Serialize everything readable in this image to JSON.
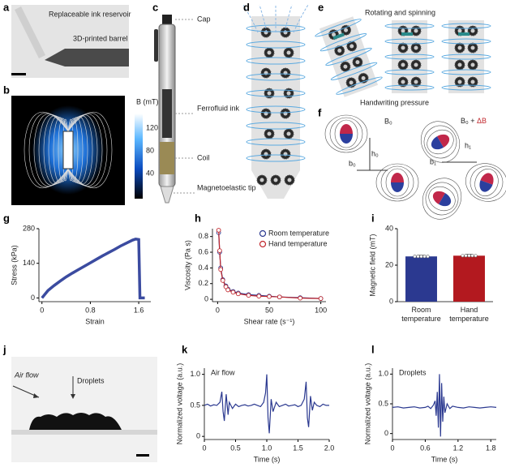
{
  "panel_letters": [
    "a",
    "b",
    "c",
    "d",
    "e",
    "f",
    "g",
    "h",
    "i",
    "j",
    "k",
    "l"
  ],
  "labels": {
    "reservoir": "Replaceable ink reservoir",
    "barrel": "3D-printed barrel",
    "colorbar_title": "B (mT)",
    "colorbar_ticks": [
      "120",
      "80",
      "40"
    ],
    "cap": "Cap",
    "ferrofluid": "Ferrofluid ink",
    "coil": "Coil",
    "tip": "Magnetoelastic tip",
    "rotating": "Rotating and spinning",
    "pressure": "Handwriting pressure",
    "b0_field": "B₀",
    "b0_plus": "B₀ + ",
    "delta_b": "ΔB",
    "b0": "b₀",
    "h0": "h₀",
    "b1": "b₁",
    "h1": "h₁",
    "air_flow": "Air flow",
    "droplets": "Droplets"
  },
  "chart_data": [
    {
      "type": "line",
      "xlabel": "Strain",
      "ylabel": "Stress (kPa)",
      "x": [
        0,
        0.1,
        0.2,
        0.3,
        0.4,
        0.5,
        0.6,
        0.7,
        0.8,
        0.9,
        1.0,
        1.1,
        1.2,
        1.3,
        1.4,
        1.5,
        1.55,
        1.6,
        1.62,
        1.7
      ],
      "series": [
        {
          "name": "Stress",
          "color": "#3b4ba0",
          "values": [
            0,
            30,
            50,
            68,
            85,
            100,
            114,
            128,
            142,
            156,
            170,
            183,
            196,
            210,
            222,
            234,
            238,
            236,
            0,
            0
          ]
        }
      ],
      "xlim": [
        -0.05,
        1.8
      ],
      "ylim": [
        -15,
        280
      ],
      "xticks": [
        0,
        0.8,
        1.6
      ],
      "yticks": [
        0,
        140,
        280
      ]
    },
    {
      "type": "line",
      "markers": true,
      "xlabel": "Shear rate (s⁻¹)",
      "ylabel": "Viscosity (Pa s)",
      "x": [
        1,
        2,
        3,
        5,
        8,
        10,
        15,
        20,
        30,
        40,
        50,
        60,
        80,
        100
      ],
      "series": [
        {
          "name": "Room temperature",
          "color": "#2b3990",
          "values": [
            0.85,
            0.6,
            0.4,
            0.25,
            0.17,
            0.13,
            0.1,
            0.08,
            0.06,
            0.05,
            0.04,
            0.03,
            0.02,
            0.01
          ]
        },
        {
          "name": "Hand temperature",
          "color": "#c1272d",
          "values": [
            0.88,
            0.62,
            0.38,
            0.24,
            0.16,
            0.12,
            0.09,
            0.07,
            0.05,
            0.04,
            0.035,
            0.03,
            0.015,
            0.01
          ]
        }
      ],
      "legend": "upper right",
      "xlim": [
        -5,
        105
      ],
      "ylim": [
        -0.03,
        0.9
      ],
      "xticks": [
        0,
        50,
        100
      ],
      "yticks": [
        0,
        0.2,
        0.4,
        0.6,
        0.8
      ]
    },
    {
      "type": "bar",
      "ylabel": "Magnetic field (mT)",
      "categories": [
        "Room temperature",
        "Hand temperature"
      ],
      "values": [
        24.8,
        25.2
      ],
      "errors": [
        0.6,
        0.7
      ],
      "colors": [
        "#2b3990",
        "#b3191f"
      ],
      "ylim": [
        0,
        40
      ],
      "yticks": [
        0,
        20,
        40
      ]
    },
    {
      "type": "line",
      "annotation": "Air flow",
      "xlabel": "Time (s)",
      "ylabel": "Normalized voltage (a.u.)",
      "x": [
        0,
        0.05,
        0.1,
        0.15,
        0.2,
        0.25,
        0.28,
        0.3,
        0.32,
        0.35,
        0.38,
        0.4,
        0.45,
        0.5,
        0.55,
        0.6,
        0.65,
        0.7,
        0.75,
        0.8,
        0.85,
        0.9,
        0.95,
        0.98,
        1.0,
        1.02,
        1.04,
        1.07,
        1.1,
        1.15,
        1.2,
        1.25,
        1.3,
        1.35,
        1.4,
        1.45,
        1.5,
        1.55,
        1.6,
        1.63,
        1.65,
        1.67,
        1.7,
        1.73,
        1.76,
        1.8,
        1.85,
        1.9,
        1.95,
        2.0
      ],
      "series": [
        {
          "name": "Air flow",
          "color": "#2b3990",
          "values": [
            0.5,
            0.52,
            0.49,
            0.51,
            0.5,
            0.55,
            0.72,
            0.4,
            0.25,
            0.68,
            0.35,
            0.55,
            0.45,
            0.52,
            0.48,
            0.5,
            0.51,
            0.49,
            0.5,
            0.52,
            0.5,
            0.48,
            0.55,
            0.7,
            1.0,
            0.3,
            0.05,
            0.6,
            0.4,
            0.55,
            0.48,
            0.5,
            0.52,
            0.49,
            0.5,
            0.51,
            0.48,
            0.5,
            0.6,
            0.88,
            0.3,
            0.15,
            0.65,
            0.42,
            0.55,
            0.5,
            0.48,
            0.52,
            0.5,
            0.5
          ]
        }
      ],
      "xlim": [
        0,
        2
      ],
      "ylim": [
        -0.05,
        1.1
      ],
      "xticks": [
        0,
        0.5,
        {
          "value": 1,
          "label": "1.0"
        },
        1.5,
        {
          "value": 2,
          "label": "2.0"
        }
      ],
      "yticks": [
        0,
        0.5,
        {
          "value": 1,
          "label": "1.0"
        }
      ]
    },
    {
      "type": "line",
      "annotation": "Droplets",
      "xlabel": "Time (s)",
      "ylabel": "Normalized voltage (a.u.)",
      "x": [
        0,
        0.1,
        0.2,
        0.3,
        0.4,
        0.5,
        0.6,
        0.65,
        0.7,
        0.75,
        0.78,
        0.8,
        0.82,
        0.84,
        0.86,
        0.88,
        0.9,
        0.92,
        0.94,
        0.96,
        1.0,
        1.05,
        1.1,
        1.2,
        1.3,
        1.4,
        1.5,
        1.6,
        1.7,
        1.8,
        1.9
      ],
      "series": [
        {
          "name": "Droplets",
          "color": "#2b3990",
          "values": [
            0.44,
            0.45,
            0.43,
            0.44,
            0.45,
            0.43,
            0.44,
            0.46,
            0.42,
            0.48,
            0.55,
            0.3,
            0.7,
            0.1,
            1.0,
            -0.05,
            0.85,
            0.2,
            0.62,
            0.35,
            0.5,
            0.42,
            0.46,
            0.44,
            0.43,
            0.45,
            0.44,
            0.43,
            0.44,
            0.45,
            0.44
          ]
        }
      ],
      "xlim": [
        0,
        1.9
      ],
      "ylim": [
        -0.1,
        1.1
      ],
      "xticks": [
        0,
        0.6,
        1.2,
        1.8
      ],
      "yticks": [
        0,
        0.5,
        {
          "value": 1,
          "label": "1.0"
        }
      ]
    }
  ]
}
